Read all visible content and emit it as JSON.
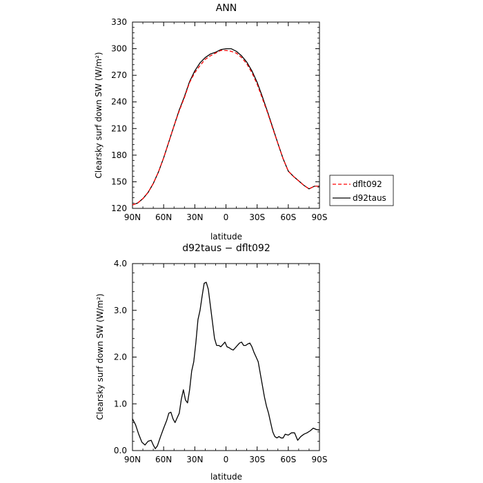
{
  "chart_data": [
    {
      "type": "line",
      "title": "ANN",
      "xlabel": "latitude",
      "ylabel": "Clearsky surf down SW (W/m²)",
      "xlim": [
        90,
        -90
      ],
      "ylim": [
        120,
        330
      ],
      "x_ticks": [
        90,
        60,
        30,
        0,
        -30,
        -60,
        -90
      ],
      "x_tick_labels": [
        "90N",
        "60N",
        "30N",
        "0",
        "30S",
        "60S",
        "90S"
      ],
      "y_ticks": [
        120,
        150,
        180,
        210,
        240,
        270,
        300,
        330
      ],
      "y_tick_labels": [
        "120",
        "150",
        "180",
        "210",
        "240",
        "270",
        "300",
        "330"
      ],
      "legend_position": "right",
      "series": [
        {
          "name": "dflt092",
          "color": "#ff0000",
          "style": "dashed",
          "x": [
            90,
            85,
            80,
            75,
            70,
            65,
            60,
            55,
            50,
            45,
            40,
            35,
            30,
            25,
            20,
            15,
            10,
            5,
            0,
            -5,
            -10,
            -15,
            -20,
            -25,
            -30,
            -35,
            -40,
            -45,
            -50,
            -55,
            -60,
            -65,
            -70,
            -75,
            -80,
            -85,
            -90
          ],
          "y": [
            124,
            126,
            131,
            138,
            148,
            161,
            177,
            195,
            213,
            230,
            245,
            262,
            273,
            281,
            288,
            292,
            295,
            298,
            298,
            297,
            295,
            290,
            283,
            273,
            260,
            244,
            228,
            210,
            193,
            176,
            162,
            156,
            151,
            146,
            142,
            145,
            145
          ]
        },
        {
          "name": "d92taus",
          "color": "#000000",
          "style": "solid",
          "x": [
            90,
            85,
            80,
            75,
            70,
            65,
            60,
            55,
            50,
            45,
            40,
            35,
            30,
            25,
            20,
            15,
            10,
            5,
            0,
            -5,
            -10,
            -15,
            -20,
            -25,
            -30,
            -35,
            -40,
            -45,
            -50,
            -55,
            -60,
            -65,
            -70,
            -75,
            -80,
            -85,
            -90
          ],
          "y": [
            124,
            126,
            131,
            138,
            148,
            161,
            177,
            195,
            213,
            231,
            246,
            263,
            275,
            284,
            290,
            294,
            296,
            299,
            300,
            300,
            297,
            292,
            285,
            275,
            262,
            246,
            229,
            211,
            193,
            176,
            162,
            156,
            151,
            146,
            142,
            145,
            145
          ]
        }
      ]
    },
    {
      "type": "line",
      "title": "d92taus − dflt092",
      "xlabel": "latitude",
      "ylabel": "Clearsky surf down SW (W/m²)",
      "xlim": [
        90,
        -90
      ],
      "ylim": [
        0,
        4
      ],
      "x_ticks": [
        90,
        60,
        30,
        0,
        -30,
        -60,
        -90
      ],
      "x_tick_labels": [
        "90N",
        "60N",
        "30N",
        "0",
        "30S",
        "60S",
        "90S"
      ],
      "y_ticks": [
        0,
        1,
        2,
        3,
        4
      ],
      "y_tick_labels": [
        "0.0",
        "1.0",
        "2.0",
        "3.0",
        "4.0"
      ],
      "series": [
        {
          "color": "#000000",
          "style": "solid",
          "x": [
            90,
            87,
            84,
            81,
            78,
            75,
            72,
            70,
            68,
            66,
            63,
            60,
            57,
            55,
            53,
            51,
            49,
            47,
            45,
            43,
            41,
            39,
            37,
            35,
            33,
            31,
            29,
            27,
            25,
            23,
            21,
            19,
            17,
            15,
            13,
            11,
            9,
            7,
            5,
            3,
            1,
            -1,
            -3,
            -5,
            -7,
            -9,
            -11,
            -13,
            -15,
            -17,
            -19,
            -21,
            -23,
            -25,
            -27,
            -29,
            -31,
            -33,
            -35,
            -37,
            -39,
            -41,
            -43,
            -45,
            -47,
            -49,
            -51,
            -53,
            -55,
            -57,
            -60,
            -63,
            -66,
            -69,
            -72,
            -75,
            -78,
            -81,
            -84,
            -87,
            -90
          ],
          "y": [
            0.68,
            0.55,
            0.35,
            0.18,
            0.12,
            0.2,
            0.22,
            0.12,
            0.04,
            0.1,
            0.3,
            0.48,
            0.65,
            0.8,
            0.82,
            0.68,
            0.6,
            0.7,
            0.8,
            1.1,
            1.3,
            1.08,
            1.02,
            1.3,
            1.7,
            1.9,
            2.3,
            2.8,
            3.0,
            3.3,
            3.58,
            3.6,
            3.45,
            3.1,
            2.75,
            2.4,
            2.25,
            2.25,
            2.22,
            2.27,
            2.32,
            2.22,
            2.2,
            2.17,
            2.15,
            2.2,
            2.25,
            2.3,
            2.32,
            2.25,
            2.25,
            2.28,
            2.3,
            2.22,
            2.1,
            2.0,
            1.9,
            1.65,
            1.4,
            1.15,
            0.95,
            0.8,
            0.6,
            0.4,
            0.3,
            0.27,
            0.3,
            0.27,
            0.27,
            0.35,
            0.33,
            0.38,
            0.38,
            0.22,
            0.3,
            0.35,
            0.38,
            0.42,
            0.48,
            0.45,
            0.44
          ]
        }
      ]
    }
  ]
}
